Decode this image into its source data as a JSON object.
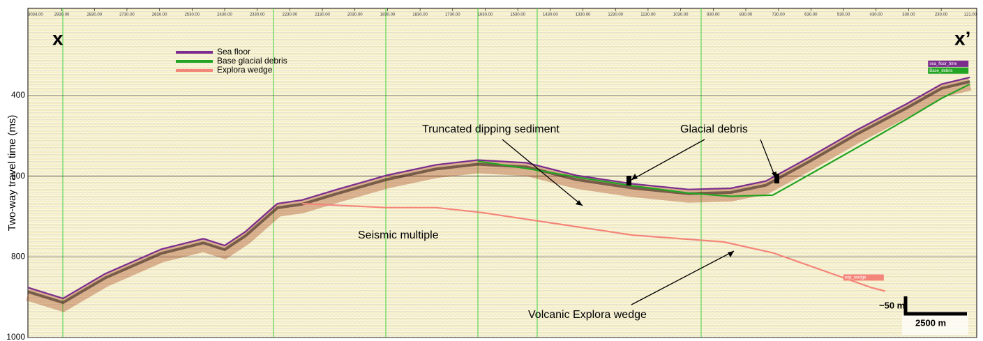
{
  "chart_data": {
    "type": "line",
    "y_label": "Two-way travel time (ms)",
    "xlim": [
      3034,
      121
    ],
    "ylim": [
      184,
      1000
    ],
    "y_inverted": true,
    "grid": true,
    "xticks": [
      {
        "value": 3034,
        "label": "3034.00"
      },
      {
        "value": 2930,
        "label": "2930.00"
      },
      {
        "value": 2830,
        "label": "2830.00"
      },
      {
        "value": 2730,
        "label": "2730.00"
      },
      {
        "value": 2630,
        "label": "2630.00"
      },
      {
        "value": 2530,
        "label": "2530.00"
      },
      {
        "value": 2430,
        "label": "2430.00"
      },
      {
        "value": 2330,
        "label": "2330.00"
      },
      {
        "value": 2230,
        "label": "2230.00"
      },
      {
        "value": 2130,
        "label": "2130.00"
      },
      {
        "value": 2030,
        "label": "2030.00"
      },
      {
        "value": 1930,
        "label": "1930.00"
      },
      {
        "value": 1830,
        "label": "1830.00"
      },
      {
        "value": 1730,
        "label": "1730.00"
      },
      {
        "value": 1630,
        "label": "1630.00"
      },
      {
        "value": 1530,
        "label": "1530.00"
      },
      {
        "value": 1430,
        "label": "1430.00"
      },
      {
        "value": 1330,
        "label": "1330.00"
      },
      {
        "value": 1230,
        "label": "1230.00"
      },
      {
        "value": 1130,
        "label": "1130.00"
      },
      {
        "value": 1030,
        "label": "1030.00"
      },
      {
        "value": 930,
        "label": "930.00"
      },
      {
        "value": 830,
        "label": "830.00"
      },
      {
        "value": 730,
        "label": "730.00"
      },
      {
        "value": 630,
        "label": "630.00"
      },
      {
        "value": 530,
        "label": "530.00"
      },
      {
        "value": 430,
        "label": "430.00"
      },
      {
        "value": 330,
        "label": "330.00"
      },
      {
        "value": 230,
        "label": "230.00"
      },
      {
        "value": 121,
        "label": "121.00"
      }
    ],
    "yticks": [
      400,
      600,
      800,
      1000
    ],
    "series": [
      {
        "name": "Sea floor",
        "tag": "sea_floor_time",
        "color": "#7b2d8e",
        "x": [
          3034,
          2926,
          2797,
          2624,
          2495,
          2430,
          2365,
          2268,
          2192,
          2085,
          1933,
          1782,
          1653,
          1502,
          1351,
          1178,
          1006,
          876,
          768,
          639,
          488,
          337,
          229,
          142
        ],
        "values": [
          876,
          903,
          842,
          781,
          755,
          772,
          737,
          668,
          659,
          633,
          598,
          572,
          560,
          567,
          598,
          619,
          633,
          630,
          612,
          555,
          485,
          421,
          372,
          355
        ]
      },
      {
        "name": "Base glacial debris",
        "tag": "Base_debris",
        "color": "#23a323",
        "x": [
          1653,
          1502,
          1351,
          1178,
          1006,
          876,
          747,
          639,
          488,
          337,
          229,
          142
        ],
        "values": [
          563,
          581,
          602,
          624,
          642,
          650,
          647,
          598,
          529,
          459,
          407,
          372
        ]
      },
      {
        "name": "Explora wedge",
        "tag": "exp_wedge",
        "color": "#f4857a",
        "x": [
          2192,
          1933,
          1782,
          1642,
          1394,
          1178,
          898,
          747,
          445,
          402
        ],
        "values": [
          668,
          678,
          678,
          690,
          720,
          746,
          763,
          790,
          876,
          885
        ]
      }
    ],
    "annotations": {
      "left_end": "x",
      "right_end": "x’",
      "truncated": "Truncated dipping sediment",
      "glacial": "Glacial debris",
      "multiple": "Seismic multiple",
      "volcanic": "Volcanic Explora wedge",
      "scale_v": "~50 m",
      "scale_h": "2500 m"
    }
  }
}
